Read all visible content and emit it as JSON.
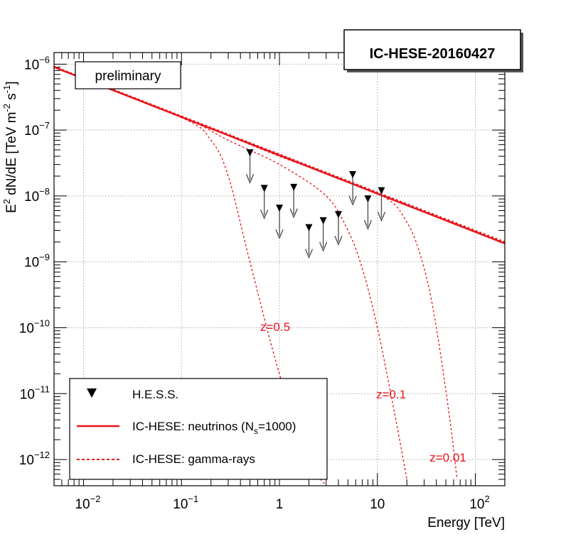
{
  "chart_data": {
    "type": "line",
    "title": "IC-HESE-20160427",
    "badge": "preliminary",
    "xlabel": "Energy [TeV]",
    "ylabel": {
      "prefix": "E",
      "sq": "2",
      "middle": " dN/dE [TeV m",
      "exp1": "-2",
      "mid2": " s",
      "exp2": "-1",
      "suffix": "]"
    },
    "x_scale": "log",
    "y_scale": "log",
    "xlim": [
      0.005,
      200
    ],
    "ylim": [
      4e-13,
      1.5e-06
    ],
    "grid": true,
    "x_ticks": [
      {
        "value": 0.01,
        "base": "10",
        "exp": "−2"
      },
      {
        "value": 0.1,
        "base": "10",
        "exp": "−1"
      },
      {
        "value": 1,
        "base": "1",
        "exp": ""
      },
      {
        "value": 10,
        "base": "10",
        "exp": ""
      },
      {
        "value": 100,
        "base": "10",
        "exp": "2"
      }
    ],
    "y_ticks": [
      {
        "value": 1e-06,
        "base": "10",
        "exp": "−6"
      },
      {
        "value": 1e-07,
        "base": "10",
        "exp": "−7"
      },
      {
        "value": 1e-08,
        "base": "10",
        "exp": "−8"
      },
      {
        "value": 1e-09,
        "base": "10",
        "exp": "−9"
      },
      {
        "value": 1e-10,
        "base": "10",
        "exp": "−10"
      },
      {
        "value": 1e-11,
        "base": "10",
        "exp": "−11"
      },
      {
        "value": 1e-12,
        "base": "10",
        "exp": "−12"
      }
    ],
    "neutrinos": {
      "x": [
        0.005,
        200
      ],
      "y": [
        9e-07,
        1.9e-09
      ]
    },
    "gamma_rays": [
      {
        "redshift": "z=0.5",
        "x": [
          0.005,
          0.1,
          0.2,
          0.3,
          0.5,
          1.0,
          2.0,
          3.0
        ],
        "y": [
          9.2e-07,
          1.55e-07,
          7e-08,
          2e-08,
          1e-09,
          2e-11,
          1e-12,
          4e-13
        ]
      },
      {
        "redshift": "z=0.1",
        "x": [
          0.005,
          0.1,
          0.3,
          1.0,
          3.0,
          5.0,
          7.0,
          10.0,
          15.0,
          20.0
        ],
        "y": [
          9.2e-07,
          1.6e-07,
          7e-08,
          3e-08,
          1e-08,
          3e-09,
          8e-10,
          1e-10,
          5e-12,
          5e-13
        ]
      },
      {
        "redshift": "z=0.01",
        "x": [
          0.005,
          0.1,
          1.0,
          10.0,
          20.0,
          30.0,
          40.0,
          55.0,
          65.0
        ],
        "y": [
          9.2e-07,
          1.6e-07,
          4e-08,
          1.1e-08,
          4e-09,
          8e-10,
          1e-10,
          4e-12,
          5e-13
        ]
      },
      {
        "redshift": "",
        "x": [
          0.005,
          200
        ],
        "y": [
          9.2e-07,
          2e-09
        ]
      }
    ],
    "redshift_labels": [
      "z=0.5",
      "z=0.1",
      "z=0.01"
    ],
    "hess_upper_limits": [
      {
        "x": 0.5,
        "y": 4.5e-08
      },
      {
        "x": 0.7,
        "y": 1.3e-08
      },
      {
        "x": 1.0,
        "y": 6.5e-09
      },
      {
        "x": 1.4,
        "y": 1.35e-08
      },
      {
        "x": 2.0,
        "y": 3.3e-09
      },
      {
        "x": 2.8,
        "y": 4.2e-09
      },
      {
        "x": 4.0,
        "y": 5.2e-09
      },
      {
        "x": 5.6,
        "y": 2.1e-08
      },
      {
        "x": 8.0,
        "y": 9e-09
      },
      {
        "x": 11.0,
        "y": 1.2e-08
      }
    ],
    "legend": {
      "placement": "bottom-left",
      "entries": [
        {
          "kind": "marker",
          "label": "H.E.S.S."
        },
        {
          "kind": "solid",
          "label_pre": "IC-HESE: neutrinos (N",
          "label_sub": "s",
          "label_post": "=1000)"
        },
        {
          "kind": "dashed",
          "label": "IC-HESE: gamma-rays"
        }
      ]
    },
    "colors": {
      "model": "#e8141b",
      "hess": "#000000",
      "arrow": "#555555",
      "grid": "#bdbdbd"
    }
  }
}
